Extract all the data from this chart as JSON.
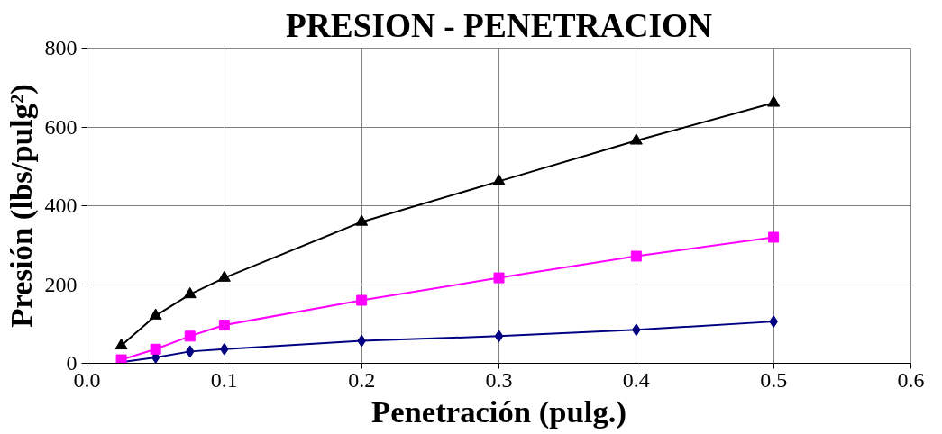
{
  "chart_data": {
    "type": "line",
    "title": "PRESION - PENETRACION",
    "xlabel": "Penetración (pulg.)",
    "ylabel": "Presión (lbs/pulg²)",
    "x": [
      0.025,
      0.05,
      0.075,
      0.1,
      0.2,
      0.3,
      0.4,
      0.5
    ],
    "series": [
      {
        "color": "#000080",
        "marker": "diamond",
        "values": [
          3,
          15,
          30,
          36,
          57,
          69,
          85,
          106
        ]
      },
      {
        "color": "#ff00ff",
        "marker": "square",
        "values": [
          9,
          36,
          69,
          97,
          160,
          217,
          272,
          320
        ]
      },
      {
        "color": "#000000",
        "marker": "triangle",
        "values": [
          45,
          121,
          175,
          217,
          359,
          462,
          565,
          661
        ]
      }
    ],
    "xlim": [
      0,
      0.6
    ],
    "xticks": [
      {
        "value": 0,
        "label": "0.0"
      },
      0.1,
      0.2,
      0.3,
      0.4,
      0.5,
      0.6
    ],
    "ylim": [
      0,
      800
    ],
    "yticks": [
      0,
      200,
      400,
      600,
      800
    ],
    "grid": true,
    "line_style": "solid"
  }
}
